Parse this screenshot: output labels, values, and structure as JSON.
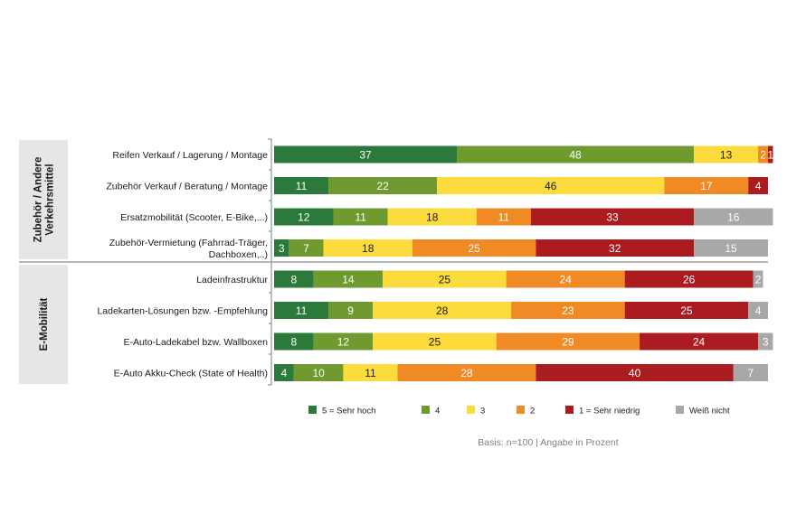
{
  "chart_data": {
    "type": "bar",
    "orientation": "horizontal",
    "stacked": true,
    "xlim": [
      0,
      100
    ],
    "grid": false,
    "legend_position": "bottom",
    "groups": [
      {
        "label": "Zubehör / Andere Verkehrsmittel",
        "label_lines": [
          "Zubehör / Andere",
          "Verkehrsmittel"
        ],
        "categories": [
          {
            "label_lines": [
              "Reifen Verkauf / Lagerung / Montage"
            ],
            "values": [
              37,
              48,
              13,
              2,
              1,
              0
            ],
            "value_labels": [
              "37",
              "48",
              "13",
              "2",
              "1",
              ""
            ]
          },
          {
            "label_lines": [
              "Zubehör Verkauf / Beratung / Montage"
            ],
            "values": [
              11,
              22,
              46,
              17,
              4,
              0
            ],
            "value_labels": [
              "11",
              "22",
              "46",
              "17",
              "4",
              ""
            ]
          },
          {
            "label_lines": [
              "Ersatzmobilität (Scooter, E-Bike,...)"
            ],
            "values": [
              12,
              11,
              18,
              11,
              33,
              16
            ],
            "value_labels": [
              "12",
              "11",
              "18",
              "11",
              "33",
              "16"
            ]
          },
          {
            "label_lines": [
              "Zubehör-Vermietung (Fahrrad-Träger,",
              "Dachboxen,..)"
            ],
            "values": [
              3,
              7,
              18,
              25,
              32,
              15
            ],
            "value_labels": [
              "3",
              "7",
              "18",
              "25",
              "32",
              "15"
            ]
          }
        ]
      },
      {
        "label": "E-Mobilität",
        "label_lines": [
          "E-Mobilität"
        ],
        "categories": [
          {
            "label_lines": [
              "Ladeinfrastruktur"
            ],
            "values": [
              8,
              14,
              25,
              24,
              26,
              2
            ],
            "value_labels": [
              "8",
              "14",
              "25",
              "24",
              "26",
              "2"
            ]
          },
          {
            "label_lines": [
              "Ladekarten-Lösungen bzw. -Empfehlung"
            ],
            "values": [
              11,
              9,
              28,
              23,
              25,
              4
            ],
            "value_labels": [
              "11",
              "9",
              "28",
              "23",
              "25",
              "4"
            ]
          },
          {
            "label_lines": [
              "E-Auto-Ladekabel bzw. Wallboxen"
            ],
            "values": [
              8,
              12,
              25,
              29,
              24,
              3
            ],
            "value_labels": [
              "8",
              "12",
              "25",
              "29",
              "24",
              "3"
            ]
          },
          {
            "label_lines": [
              "E-Auto Akku-Check (State of Health)"
            ],
            "values": [
              4,
              10,
              11,
              28,
              40,
              7
            ],
            "value_labels": [
              "4",
              "10",
              "11",
              "28",
              "40",
              "7"
            ]
          }
        ]
      }
    ],
    "series": [
      {
        "name": "5 = Sehr hoch",
        "color": "#2b7a3b",
        "text_color": "#ffffff"
      },
      {
        "name": "4",
        "color": "#6f9a30",
        "text_color": "#ffffff"
      },
      {
        "name": "3",
        "color": "#fcdc3c",
        "text_color": "#1a1a1a"
      },
      {
        "name": "2",
        "color": "#ef8a25",
        "text_color": "#ffffff"
      },
      {
        "name": "1 = Sehr niedrig",
        "color": "#aa1c20",
        "text_color": "#ffffff"
      },
      {
        "name": "Weiß nicht",
        "color": "#a8a8a8",
        "text_color": "#ffffff"
      }
    ],
    "footnote": "Basis: n=100 | Angabe in Prozent"
  },
  "colors": {
    "group_box": "#e6e6e6",
    "text": "#1a1a1a",
    "footnote": "#808080",
    "divider": "#6e6e6e",
    "bracket": "#7f7f7f"
  }
}
